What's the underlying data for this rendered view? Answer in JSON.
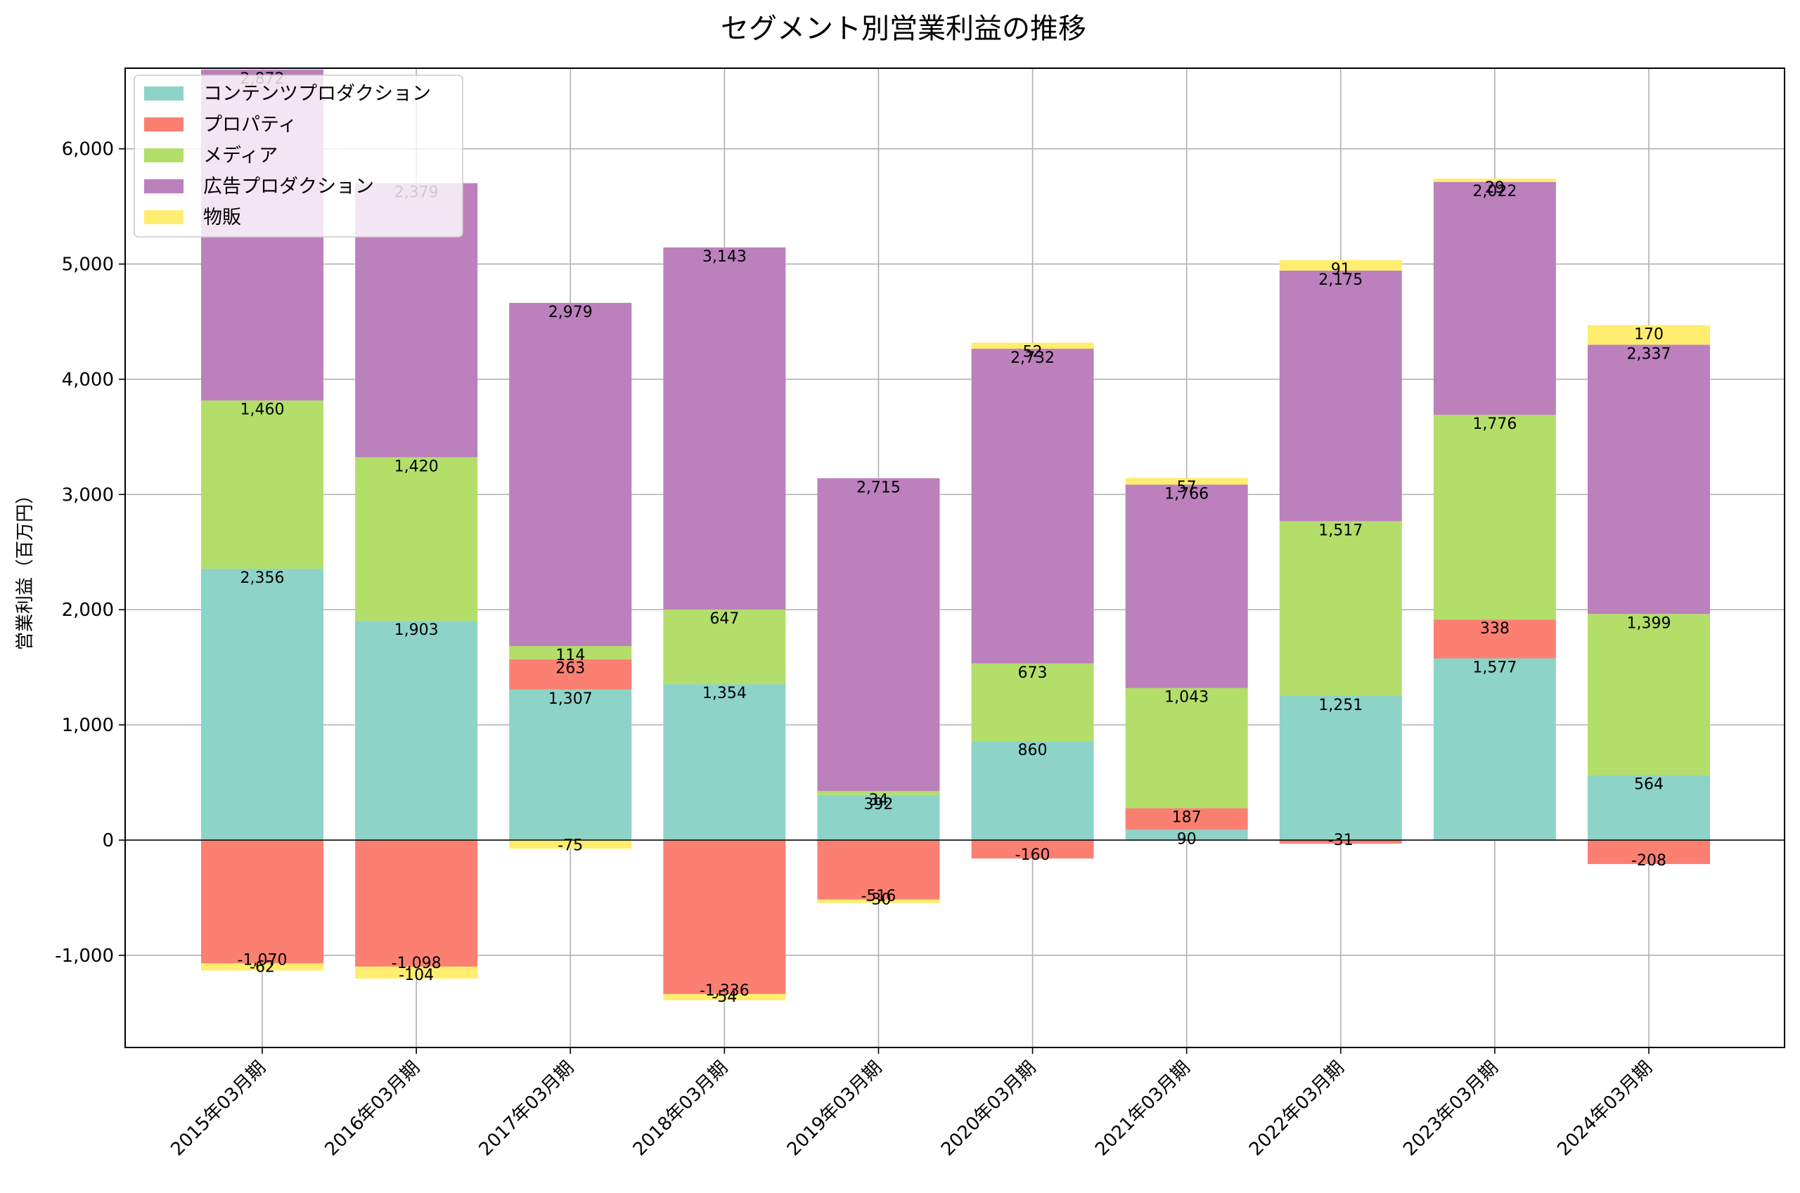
{
  "chart_data": {
    "type": "bar",
    "stacked": true,
    "title": "セグメント別営業利益の推移",
    "xlabel": "",
    "ylabel": "営業利益（百万円）",
    "ylim": [
      -1800,
      6700
    ],
    "yticks": [
      -1000,
      0,
      1000,
      2000,
      3000,
      4000,
      5000,
      6000
    ],
    "ytick_labels": [
      "-1,000",
      "0",
      "1,000",
      "2,000",
      "3,000",
      "4,000",
      "5,000",
      "6,000"
    ],
    "grid": true,
    "legend_position": "top-left",
    "categories": [
      "2015年03月期",
      "2016年03月期",
      "2017年03月期",
      "2018年03月期",
      "2019年03月期",
      "2020年03月期",
      "2021年03月期",
      "2022年03月期",
      "2023年03月期",
      "2024年03月期"
    ],
    "series": [
      {
        "name": "コンテンツプロダクション",
        "color": "#8dd3c7",
        "values": [
          2356,
          1903,
          1307,
          1354,
          392,
          860,
          90,
          1251,
          1577,
          564
        ]
      },
      {
        "name": "プロパティ",
        "color": "#fb8072",
        "values": [
          -1070,
          -1098,
          263,
          -1336,
          -516,
          -160,
          187,
          -31,
          338,
          -208
        ]
      },
      {
        "name": "メディア",
        "color": "#b3de69",
        "values": [
          1460,
          1420,
          114,
          647,
          34,
          673,
          1043,
          1517,
          1776,
          1399
        ]
      },
      {
        "name": "広告プロダクション",
        "color": "#bc80bd",
        "values": [
          2872,
          2379,
          2979,
          3143,
          2715,
          2732,
          1766,
          2175,
          2022,
          2337
        ]
      },
      {
        "name": "物販",
        "color": "#ffed6f",
        "values": [
          -62,
          -104,
          -75,
          -54,
          -30,
          52,
          57,
          91,
          29,
          170
        ]
      }
    ]
  }
}
